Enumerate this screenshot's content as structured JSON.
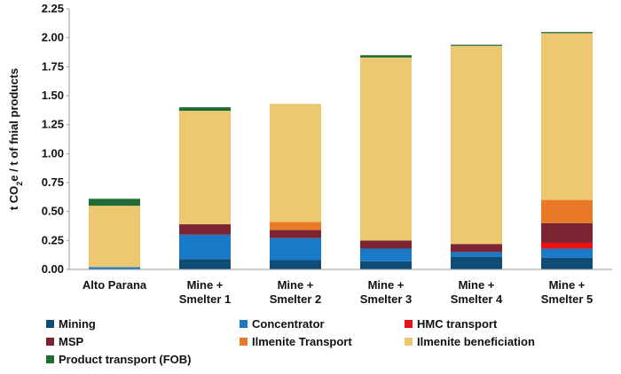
{
  "chart_data": {
    "type": "bar",
    "stacked": true,
    "title": "",
    "xlabel": "",
    "ylabel": "t CO",
    "ylabel_sub": "2",
    "ylabel_rest": "e / t  of fnial products",
    "ylim": [
      0,
      2.25
    ],
    "yticks": [
      "0.00",
      "0.25",
      "0.50",
      "0.75",
      "1.00",
      "1.25",
      "1.50",
      "1.75",
      "2.00",
      "2.25"
    ],
    "categories": [
      [
        "Alto Parana"
      ],
      [
        "Mine +",
        "Smelter 1"
      ],
      [
        "Mine +",
        "Smelter 2"
      ],
      [
        "Mine +",
        "Smelter 3"
      ],
      [
        "Mine +",
        "Smelter 4"
      ],
      [
        "Mine +",
        "Smelter 5"
      ]
    ],
    "series": [
      {
        "name": "Mining",
        "color": "#0f4c75",
        "values": [
          0.0,
          0.09,
          0.08,
          0.07,
          0.11,
          0.1
        ]
      },
      {
        "name": "Concentrator",
        "color": "#1a7ac8",
        "values": [
          0.02,
          0.21,
          0.19,
          0.11,
          0.04,
          0.08
        ]
      },
      {
        "name": "HMC transport",
        "color": "#ee1111",
        "values": [
          0.0,
          0.0,
          0.0,
          0.0,
          0.0,
          0.05
        ]
      },
      {
        "name": "MSP",
        "color": "#7b2432",
        "values": [
          0.0,
          0.09,
          0.07,
          0.07,
          0.07,
          0.17
        ]
      },
      {
        "name": "Ilmenite Transport",
        "color": "#e87a27",
        "values": [
          0.0,
          0.0,
          0.07,
          0.0,
          0.0,
          0.2
        ]
      },
      {
        "name": "Ilmenite beneficiation",
        "color": "#ecc871",
        "values": [
          0.53,
          0.98,
          1.02,
          1.58,
          1.71,
          1.44
        ]
      },
      {
        "name": "Product transport (FOB)",
        "color": "#1f6b35",
        "values": [
          0.06,
          0.03,
          0.0,
          0.02,
          0.01,
          0.01
        ]
      }
    ],
    "grid": false,
    "legend_position": "bottom"
  }
}
